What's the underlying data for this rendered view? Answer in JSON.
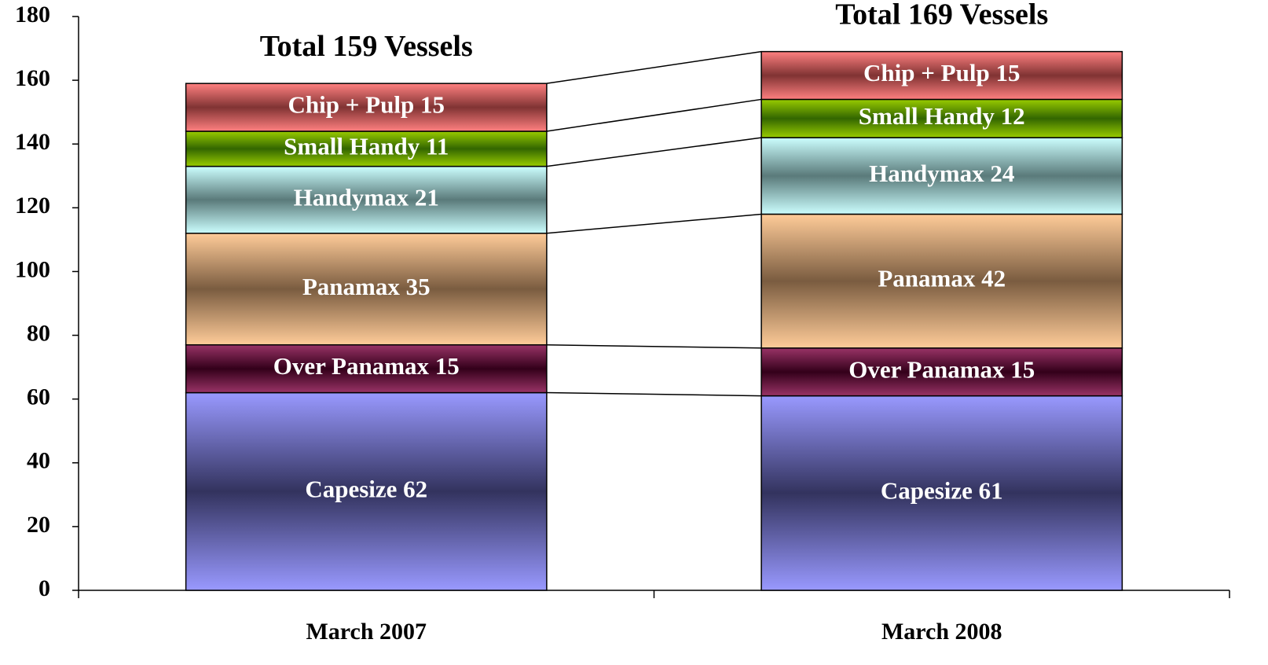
{
  "chart_data": {
    "type": "stacked_bar",
    "categories": [
      "March 2007",
      "March 2008"
    ],
    "annotations": [
      "Total 159 Vessels",
      "Total 169 Vessels"
    ],
    "series": [
      {
        "color": "#9999ff",
        "shade": "#33335e",
        "values": [
          62,
          61
        ],
        "value_labels": [
          "Capesize 62",
          "Capesize 61"
        ]
      },
      {
        "color": "#993366",
        "shade": "#33001a",
        "values": [
          15,
          15
        ],
        "value_labels": [
          "Over Panamax 15",
          "Over Panamax 15"
        ]
      },
      {
        "color": "#ffcc99",
        "shade": "#7a5c40",
        "values": [
          35,
          42
        ],
        "value_labels": [
          "Panamax 35",
          "Panamax 42"
        ]
      },
      {
        "color": "#ccffff",
        "shade": "#5a7a7a",
        "values": [
          21,
          24
        ],
        "value_labels": [
          "Handymax 21",
          "Handymax 24"
        ]
      },
      {
        "color": "#99cc00",
        "shade": "#336600",
        "values": [
          11,
          12
        ],
        "value_labels": [
          "Small Handy 11",
          "Small Handy 12"
        ]
      },
      {
        "color": "#ff8080",
        "shade": "#803333",
        "values": [
          15,
          15
        ],
        "value_labels": [
          "Chip + Pulp 15",
          "Chip + Pulp 15"
        ]
      }
    ],
    "ylim": [
      0,
      180
    ],
    "yticks": [
      0,
      20,
      40,
      60,
      80,
      100,
      120,
      140,
      160,
      180
    ]
  }
}
